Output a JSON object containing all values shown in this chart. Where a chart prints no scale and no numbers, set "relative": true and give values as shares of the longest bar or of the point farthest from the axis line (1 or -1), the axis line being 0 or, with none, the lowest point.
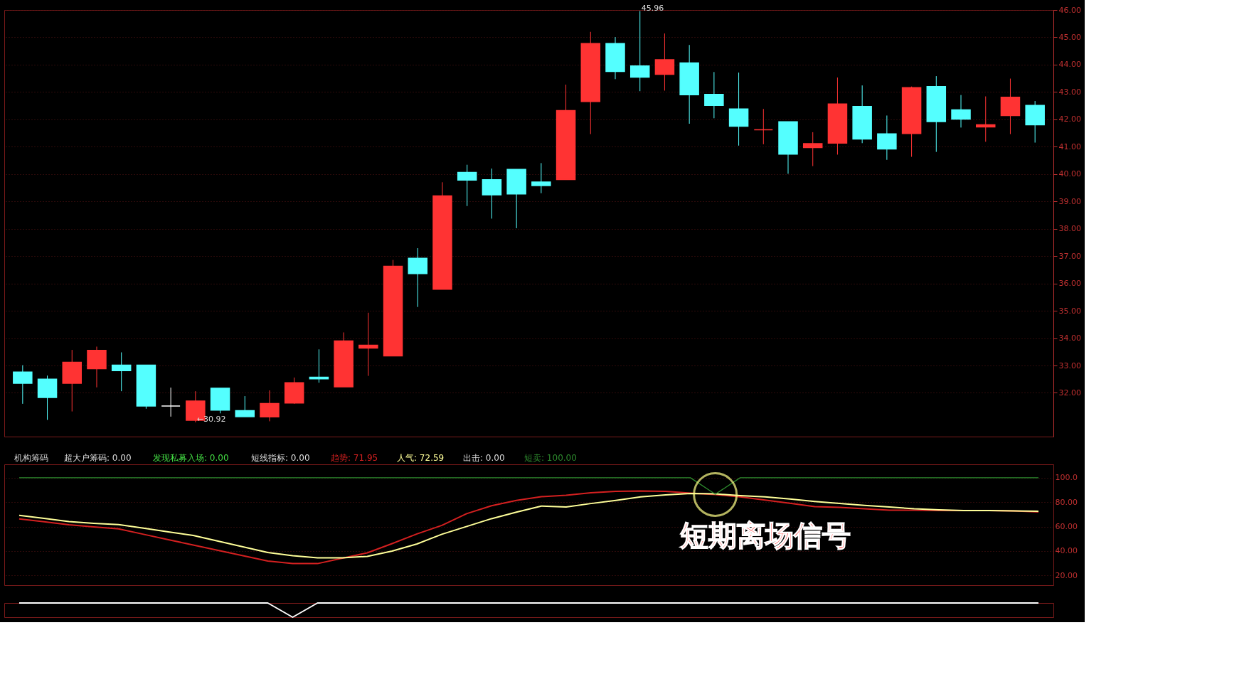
{
  "chart_data": [
    {
      "type": "candlestick",
      "categories": [
        null,
        null,
        null,
        null,
        null,
        null,
        null,
        null,
        null,
        null,
        null,
        null,
        null,
        null,
        null,
        null,
        null,
        null,
        null,
        null,
        null,
        null,
        null,
        null,
        null,
        null,
        null,
        null,
        null,
        null,
        null,
        null,
        null,
        null,
        null,
        null,
        null,
        null,
        null,
        null,
        null,
        null
      ],
      "ohlc": [
        [
          32.76,
          33.01,
          31.6,
          32.35
        ],
        [
          32.5,
          32.63,
          31.01,
          31.83
        ],
        [
          32.35,
          33.57,
          31.32,
          33.12
        ],
        [
          32.88,
          33.69,
          32.2,
          33.55
        ],
        [
          33.01,
          33.48,
          32.06,
          32.81
        ],
        [
          33.01,
          33.01,
          31.42,
          31.52
        ],
        [
          31.52,
          32.19,
          31.13,
          31.52
        ],
        [
          31.0,
          32.06,
          30.92,
          31.7
        ],
        [
          32.17,
          32.17,
          31.25,
          31.37
        ],
        [
          31.35,
          31.88,
          31.13,
          31.13
        ],
        [
          31.12,
          32.09,
          30.96,
          31.61
        ],
        [
          31.63,
          32.56,
          31.6,
          32.37
        ],
        [
          32.57,
          33.59,
          32.37,
          32.51
        ],
        [
          32.22,
          34.21,
          32.22,
          33.9
        ],
        [
          33.64,
          34.93,
          32.62,
          33.74
        ],
        [
          33.35,
          36.86,
          33.35,
          36.63
        ],
        [
          36.92,
          37.29,
          35.14,
          36.36
        ],
        [
          35.79,
          39.7,
          35.79,
          39.2
        ],
        [
          40.06,
          40.34,
          38.83,
          39.78
        ],
        [
          39.79,
          40.2,
          38.37,
          39.24
        ],
        [
          40.17,
          40.17,
          38.02,
          39.27
        ],
        [
          39.71,
          40.4,
          39.3,
          39.58
        ],
        [
          39.8,
          43.27,
          39.8,
          42.32
        ],
        [
          42.65,
          45.2,
          41.46,
          44.77
        ],
        [
          44.77,
          45.01,
          43.47,
          43.75
        ],
        [
          43.95,
          45.96,
          43.03,
          43.54
        ],
        [
          43.65,
          45.14,
          43.05,
          44.18
        ],
        [
          44.06,
          44.72,
          41.84,
          42.9
        ],
        [
          42.91,
          43.73,
          42.04,
          42.51
        ],
        [
          42.38,
          43.71,
          41.04,
          41.75
        ],
        [
          41.62,
          42.38,
          41.09,
          41.62
        ],
        [
          41.91,
          41.91,
          40.01,
          40.73
        ],
        [
          40.97,
          41.53,
          40.29,
          41.11
        ],
        [
          41.13,
          43.53,
          40.71,
          42.56
        ],
        [
          42.47,
          43.24,
          41.13,
          41.28
        ],
        [
          41.47,
          42.14,
          40.52,
          40.92
        ],
        [
          41.48,
          43.2,
          40.63,
          43.16
        ],
        [
          43.2,
          43.58,
          40.81,
          41.92
        ],
        [
          42.35,
          42.89,
          41.7,
          42.01
        ],
        [
          41.72,
          42.84,
          41.18,
          41.8
        ],
        [
          42.14,
          43.49,
          41.46,
          42.81
        ],
        [
          42.51,
          42.67,
          41.15,
          41.8
        ]
      ],
      "colors": [
        "#54ffff",
        "#54ffff",
        "#ff3333",
        "#ff3333",
        "#54ffff",
        "#54ffff",
        "#ffffff",
        "#ff3333",
        "#54ffff",
        "#54ffff",
        "#ff3333",
        "#ff3333",
        "#54ffff",
        "#ff3333",
        "#ff3333",
        "#ff3333",
        "#54ffff",
        "#ff3333",
        "#54ffff",
        "#54ffff",
        "#54ffff",
        "#54ffff",
        "#ff3333",
        "#ff3333",
        "#54ffff",
        "#54ffff",
        "#ff3333",
        "#54ffff",
        "#54ffff",
        "#54ffff",
        "#ff3333",
        "#54ffff",
        "#ff3333",
        "#ff3333",
        "#54ffff",
        "#54ffff",
        "#ff3333",
        "#54ffff",
        "#54ffff",
        "#ff3333",
        "#ff3333",
        "#54ffff"
      ],
      "ylim": [
        30.4,
        46
      ],
      "yticks": [
        {
          "value": 32,
          "label": "32.00"
        },
        {
          "value": 33,
          "label": "33.00"
        },
        {
          "value": 34,
          "label": "34.00"
        },
        {
          "value": 35,
          "label": "35.00"
        },
        {
          "value": 36,
          "label": "36.00"
        },
        {
          "value": 37,
          "label": "37.00"
        },
        {
          "value": 38,
          "label": "38.00"
        },
        {
          "value": 39,
          "label": "39.00"
        },
        {
          "value": 40,
          "label": "40.00"
        },
        {
          "value": 41,
          "label": "41.00"
        },
        {
          "value": 42,
          "label": "42.00"
        },
        {
          "value": 43,
          "label": "43.00"
        },
        {
          "value": 44,
          "label": "44.00"
        },
        {
          "value": 45,
          "label": "45.00"
        },
        {
          "value": 46,
          "label": "46.00"
        }
      ],
      "grid": "y",
      "tick_labels": "y",
      "annotations": [
        "45.96",
        "←30.92"
      ]
    },
    {
      "type": "line",
      "title": "机构筹码",
      "categories": [
        null,
        null,
        null,
        null,
        null,
        null,
        null,
        null,
        null,
        null,
        null,
        null,
        null,
        null,
        null,
        null,
        null,
        null,
        null,
        null,
        null,
        null,
        null,
        null,
        null,
        null,
        null,
        null,
        null,
        null,
        null,
        null,
        null,
        null,
        null,
        null,
        null,
        null,
        null,
        null,
        null,
        null
      ],
      "series": [
        {
          "name": "趋势: 71.95",
          "color": "#d42020",
          "values": [
            66.3,
            64.0,
            61.5,
            59.8,
            58.1,
            53.7,
            49.3,
            44.9,
            40.5,
            36.2,
            31.8,
            29.7,
            29.7,
            34.1,
            38.5,
            46.1,
            54.0,
            61.0,
            70.6,
            77.1,
            81.5,
            84.5,
            85.7,
            87.7,
            88.8,
            89.1,
            88.8,
            87.4,
            86.3,
            84.3,
            81.7,
            79.1,
            76.3,
            75.7,
            74.6,
            73.5,
            73.5,
            73.2,
            73.2,
            73.2,
            72.9,
            72.0
          ]
        },
        {
          "name": "人气: 72.59",
          "color": "#ffff99",
          "values": [
            69.2,
            66.7,
            64.1,
            62.7,
            61.6,
            58.7,
            55.7,
            52.8,
            48.1,
            43.5,
            38.8,
            36.1,
            34.4,
            34.4,
            35.6,
            40.0,
            45.8,
            53.7,
            60.1,
            66.5,
            71.8,
            76.8,
            76.0,
            78.9,
            81.4,
            84.3,
            86.0,
            87.1,
            86.8,
            85.4,
            84.3,
            82.6,
            80.6,
            78.9,
            77.4,
            76.0,
            74.6,
            73.8,
            73.2,
            73.2,
            72.9,
            72.6
          ]
        },
        {
          "name": "短卖: 100.00",
          "color": "#2e8b2e",
          "values": [
            100,
            100,
            100,
            100,
            100,
            100,
            100,
            100,
            100,
            100,
            100,
            100,
            100,
            100,
            100,
            100,
            100,
            100,
            100,
            100,
            100,
            100,
            100,
            100,
            100,
            100,
            100,
            100,
            86.5,
            100,
            100,
            100,
            100,
            100,
            100,
            100,
            100,
            100,
            100,
            100,
            100,
            100
          ]
        }
      ],
      "ylim": [
        12,
        111
      ],
      "yticks": [
        {
          "value": 20,
          "label": "20.00"
        },
        {
          "value": 40,
          "label": "40.00"
        },
        {
          "value": 60,
          "label": "60.00"
        },
        {
          "value": 80,
          "label": "80.00"
        },
        {
          "value": 100,
          "label": "100.0"
        }
      ],
      "grid": "y",
      "tick_labels": "y",
      "annotations": [
        "超大户筹码: 0.00",
        "发现私募入场: 0.00",
        "短线指标: 0.00",
        "出击: 0.00",
        "短期离场信号"
      ]
    },
    {
      "type": "line",
      "relative": true,
      "categories": [
        null,
        null,
        null,
        null,
        null,
        null,
        null,
        null,
        null,
        null,
        null,
        null,
        null,
        null,
        null,
        null,
        null,
        null,
        null,
        null,
        null,
        null,
        null,
        null,
        null,
        null,
        null,
        null,
        null,
        null,
        null,
        null,
        null,
        null,
        null,
        null,
        null,
        null,
        null,
        null,
        null,
        null
      ],
      "values": [
        1,
        1,
        1,
        1,
        1,
        1,
        1,
        1,
        1,
        1,
        1,
        0,
        1,
        1,
        1,
        1,
        1,
        1,
        1,
        1,
        1,
        1,
        1,
        1,
        1,
        1,
        1,
        1,
        1,
        1,
        1,
        1,
        1,
        1,
        1,
        1,
        1,
        1,
        1,
        1,
        1,
        1
      ],
      "color": "#ffffff"
    }
  ]
}
